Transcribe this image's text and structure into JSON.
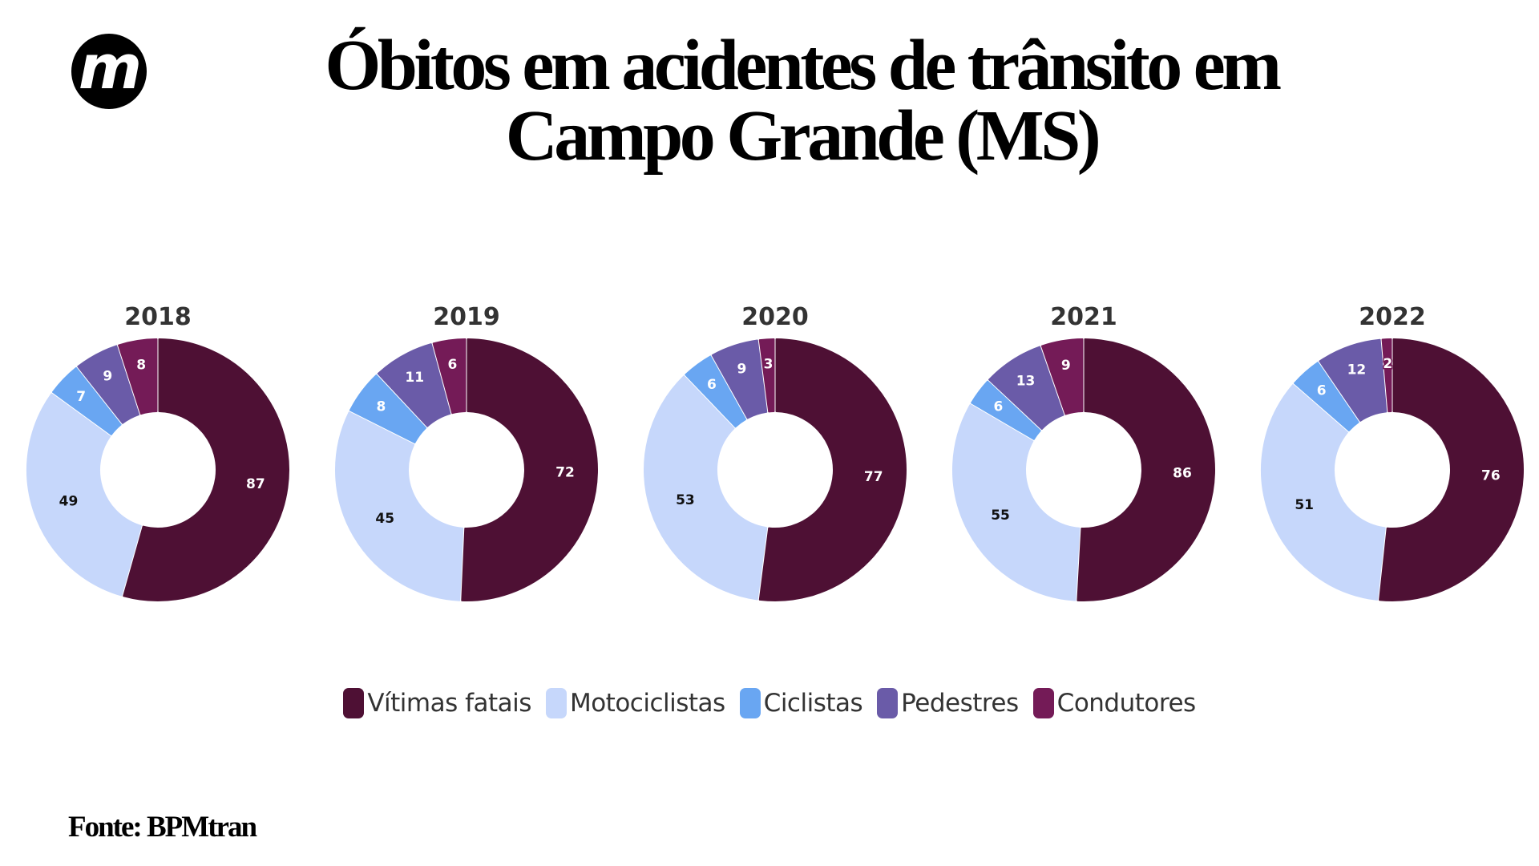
{
  "logo": {
    "letter": "m"
  },
  "title": {
    "line1": "Óbitos em acidentes de trânsito em",
    "line2": "Campo Grande (MS)"
  },
  "source": "Fonte: BPMtran",
  "chart_data": {
    "type": "pie",
    "variant": "donut",
    "title": "Óbitos em acidentes de trânsito em Campo Grande (MS)",
    "categories": [
      "Vítimas fatais",
      "Motociclistas",
      "Ciclistas",
      "Pedestres",
      "Condutores"
    ],
    "colors": [
      "#4E1034",
      "#C6D7FB",
      "#69A6F2",
      "#6A5BA8",
      "#741B57"
    ],
    "label_colors": [
      "#ffffff",
      "#111111",
      "#ffffff",
      "#ffffff",
      "#ffffff"
    ],
    "legend_position": "bottom",
    "charts": [
      {
        "year": "2018",
        "values": [
          87,
          49,
          7,
          9,
          8
        ]
      },
      {
        "year": "2019",
        "values": [
          72,
          45,
          8,
          11,
          6
        ]
      },
      {
        "year": "2020",
        "values": [
          77,
          53,
          6,
          9,
          3
        ]
      },
      {
        "year": "2021",
        "values": [
          86,
          55,
          6,
          13,
          9
        ]
      },
      {
        "year": "2022",
        "values": [
          76,
          51,
          6,
          12,
          2
        ]
      }
    ]
  }
}
